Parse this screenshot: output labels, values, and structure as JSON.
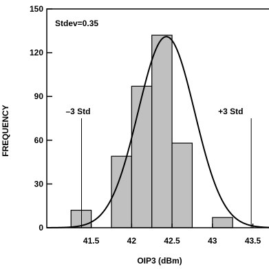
{
  "chart_data": {
    "type": "bar",
    "xlabel": "OIP3 (dBm)",
    "ylabel": "FREQUENCY",
    "xlim": [
      40.95,
      43.7
    ],
    "ylim": [
      0,
      150
    ],
    "x_ticks": [
      41.5,
      42,
      42.5,
      43,
      43.5
    ],
    "x_tick_labels": [
      "41.5",
      "42",
      "42.5",
      "43",
      "43.5"
    ],
    "y_ticks": [
      0,
      30,
      60,
      90,
      120,
      150
    ],
    "y_tick_labels": [
      "0",
      "30",
      "60",
      "90",
      "120",
      "150"
    ],
    "bin_width": 0.25,
    "bins": [
      {
        "start": 41.25,
        "end": 41.5,
        "value": 12
      },
      {
        "start": 41.5,
        "end": 41.75,
        "value": 0
      },
      {
        "start": 41.75,
        "end": 42.0,
        "value": 49
      },
      {
        "start": 42.0,
        "end": 42.25,
        "value": 97
      },
      {
        "start": 42.25,
        "end": 42.5,
        "value": 132
      },
      {
        "start": 42.5,
        "end": 42.75,
        "value": 58
      },
      {
        "start": 42.75,
        "end": 43.0,
        "value": 0
      },
      {
        "start": 43.0,
        "end": 43.25,
        "value": 7
      }
    ],
    "curve": {
      "mean": 42.43,
      "stdev": 0.35,
      "peak": 131
    },
    "markers": [
      {
        "x": 41.38,
        "label": "–3 Std"
      },
      {
        "x": 43.48,
        "label": "+3 Std"
      }
    ],
    "annotation": "Stdev=0.35",
    "grid": false,
    "colors": {
      "bar_fill": "#c0c0c0",
      "bar_stroke": "#000000",
      "curve": "#000000",
      "axis": "#000000"
    }
  }
}
